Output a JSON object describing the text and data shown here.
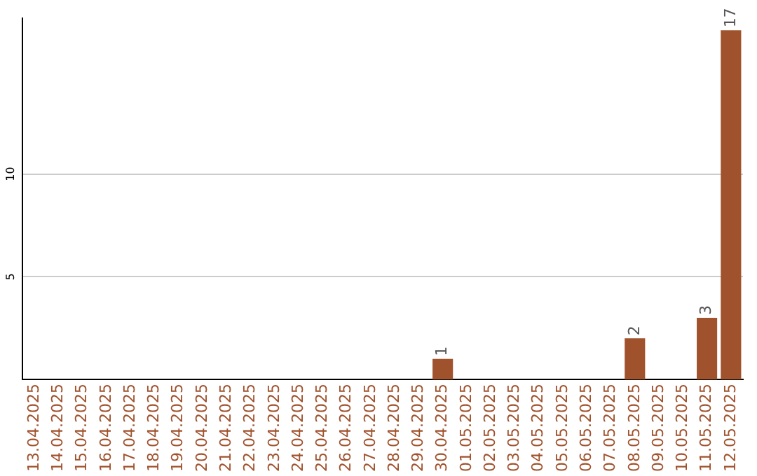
{
  "chart_data": {
    "type": "bar",
    "categories": [
      "13.04.2025",
      "14.04.2025",
      "15.04.2025",
      "16.04.2025",
      "17.04.2025",
      "18.04.2025",
      "19.04.2025",
      "20.04.2025",
      "21.04.2025",
      "22.04.2025",
      "23.04.2025",
      "24.04.2025",
      "25.04.2025",
      "26.04.2025",
      "27.04.2025",
      "28.04.2025",
      "29.04.2025",
      "30.04.2025",
      "01.05.2025",
      "02.05.2025",
      "03.05.2025",
      "04.05.2025",
      "05.05.2025",
      "06.05.2025",
      "07.05.2025",
      "08.05.2025",
      "09.05.2025",
      "10.05.2025",
      "11.05.2025",
      "12.05.2025"
    ],
    "values": [
      0,
      0,
      0,
      0,
      0,
      0,
      0,
      0,
      0,
      0,
      0,
      0,
      0,
      0,
      0,
      0,
      0,
      1,
      0,
      0,
      0,
      0,
      0,
      0,
      0,
      2,
      0,
      0,
      3,
      17
    ],
    "value_labels": [
      null,
      null,
      null,
      null,
      null,
      null,
      null,
      null,
      null,
      null,
      null,
      null,
      null,
      null,
      null,
      null,
      null,
      "1",
      null,
      null,
      null,
      null,
      null,
      null,
      null,
      "2",
      null,
      null,
      "3",
      "17"
    ],
    "color": "#a0522d",
    "ylim": [
      0,
      17.6
    ],
    "yticks": [
      5,
      10
    ],
    "grid": "y",
    "legend": false
  }
}
